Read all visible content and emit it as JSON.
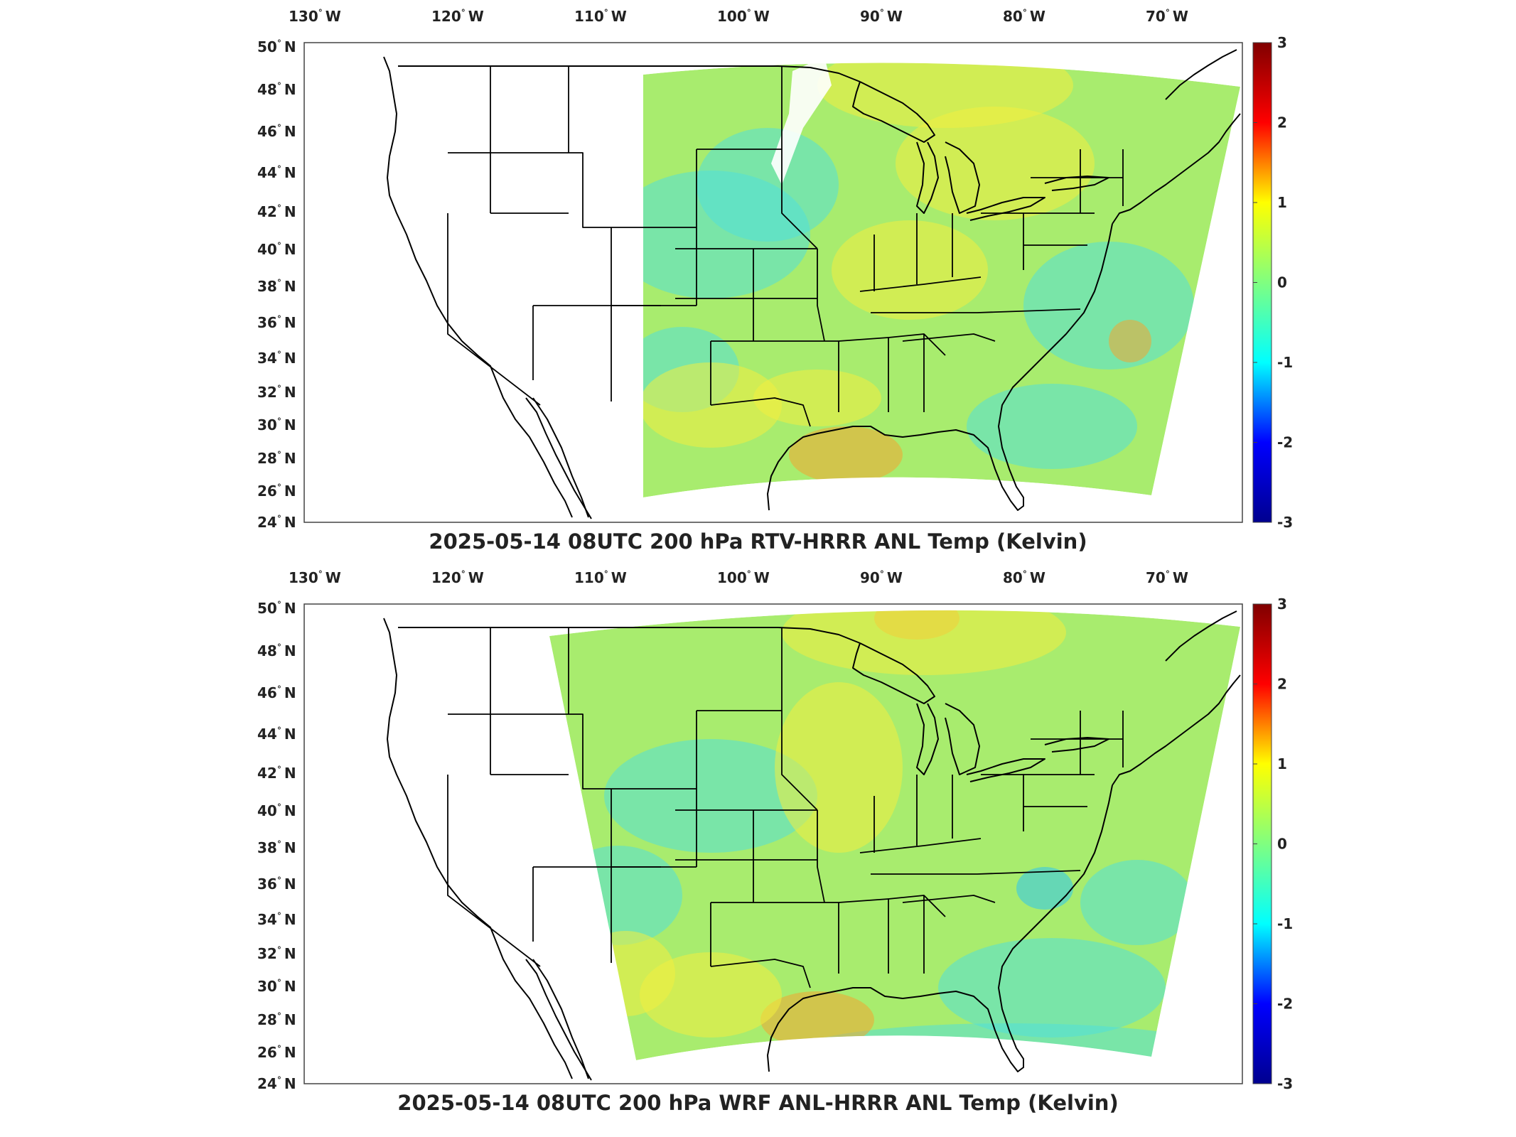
{
  "panels": [
    {
      "title": "2025-05-14 08UTC 200 hPa RTV-HRRR ANL Temp (Kelvin)",
      "variant": "rtv"
    },
    {
      "title": "2025-05-14 08UTC 200 hPa WRF ANL-HRRR ANL Temp (Kelvin)",
      "variant": "wrf"
    }
  ],
  "lon_labels": [
    {
      "num": "130",
      "dir": "W",
      "lon": -130
    },
    {
      "num": "120",
      "dir": "W",
      "lon": -120
    },
    {
      "num": "110",
      "dir": "W",
      "lon": -110
    },
    {
      "num": "100",
      "dir": "W",
      "lon": -100
    },
    {
      "num": "90",
      "dir": "W",
      "lon": -90
    },
    {
      "num": "80",
      "dir": "W",
      "lon": -80
    },
    {
      "num": "70",
      "dir": "W",
      "lon": -70
    }
  ],
  "lat_labels": [
    {
      "num": "50",
      "dir": "N",
      "lat": 50
    },
    {
      "num": "48",
      "dir": "N",
      "lat": 48
    },
    {
      "num": "46",
      "dir": "N",
      "lat": 46
    },
    {
      "num": "44",
      "dir": "N",
      "lat": 44
    },
    {
      "num": "42",
      "dir": "N",
      "lat": 42
    },
    {
      "num": "40",
      "dir": "N",
      "lat": 40
    },
    {
      "num": "38",
      "dir": "N",
      "lat": 38
    },
    {
      "num": "36",
      "dir": "N",
      "lat": 36
    },
    {
      "num": "34",
      "dir": "N",
      "lat": 34
    },
    {
      "num": "32",
      "dir": "N",
      "lat": 32
    },
    {
      "num": "30",
      "dir": "N",
      "lat": 30
    },
    {
      "num": "28",
      "dir": "N",
      "lat": 28
    },
    {
      "num": "26",
      "dir": "N",
      "lat": 26
    },
    {
      "num": "24",
      "dir": "N",
      "lat": 24
    }
  ],
  "colorbar": {
    "ticks": [
      "3",
      "2",
      "1",
      "0",
      "-1",
      "-2",
      "-3"
    ],
    "min": -3,
    "max": 3,
    "colormap": "jet",
    "colors": [
      "#00008f",
      "#0000ff",
      "#00ffff",
      "#80ff80",
      "#ffff00",
      "#ff0000",
      "#800000"
    ]
  },
  "field_colors": {
    "base": "#a8ec6e",
    "warm": "#f2ee40",
    "cool": "#52e0d8",
    "hot": "#f2a632",
    "cold": "#2ec6f0"
  },
  "map_line_color": "#000000"
}
